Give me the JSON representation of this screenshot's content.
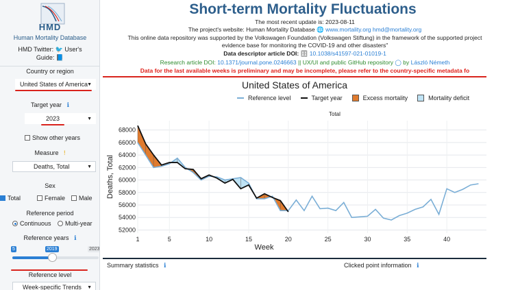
{
  "sidebar": {
    "logo_text": "HMD",
    "db_name": "Human Mortality Database",
    "twitter_line1": "HMD Twitter:",
    "twitter_user": "User's",
    "twitter_guide": "Guide:",
    "country_label": "Country or region",
    "country_value": "United States of America",
    "target_year_label": "Target year",
    "target_year_value": "2023",
    "show_other_years": "Show other years",
    "measure_label": "Measure",
    "measure_value": "Deaths, Total",
    "sex_label": "Sex",
    "sex_options": [
      "Total",
      "Female",
      "Male"
    ],
    "reference_period_label": "Reference period",
    "reference_period_options": [
      "Continuous",
      "Multi-year"
    ],
    "reference_years_label": "Reference years",
    "slider_min": "5",
    "slider_value": "2019",
    "slider_max": "2023",
    "reference_level_label": "Reference level",
    "reference_level_value": "Week-specific Trends"
  },
  "header": {
    "title": "Short-term Mortality Fluctuations",
    "update": "The most recent update is: 2023-08-11",
    "website_prefix": "The project's website: Human Mortality Database",
    "website_link": "www.mortality.org",
    "email_link": "hmd@mortality.org",
    "support_line1": "This online data repository was supported by the Volkswagen Foundation (Volkswagen Stiftung) in the framework of the supported project",
    "support_line2": "evidence base for monitoring the COVID-19 and other disasters\"",
    "descriptor_label": "Data descriptor article DOI:",
    "descriptor_doi": "10.1038/s41597-021-01019-1",
    "research_label": "Research article DOI:",
    "research_doi": "10.1371/journal.pone.0246663",
    "github_text": "|| UX/UI and public GitHub repository",
    "github_by": "by",
    "github_author": "László Németh",
    "warning": "Data for the last available weeks is preliminary and may be incomplete, please refer to the country-specific metadata fo"
  },
  "chart_data": {
    "type": "line",
    "title": "United States of America",
    "subtitle": "Total",
    "xlabel": "Week",
    "ylabel": "Deaths, Total",
    "xlim": [
      1,
      45
    ],
    "ylim": [
      51500,
      69500
    ],
    "x_ticks": [
      1,
      5,
      10,
      15,
      20,
      25,
      30,
      35,
      40
    ],
    "y_ticks": [
      52000,
      54000,
      56000,
      58000,
      60000,
      62000,
      64000,
      66000,
      68000
    ],
    "legend": [
      "Reference level",
      "Target year",
      "Excess mortality",
      "Mortality deficit"
    ],
    "colors": {
      "reference": "#7aaed6",
      "target": "#111111",
      "excess": "#e07b2e",
      "deficit": "#bfe3f5"
    },
    "reference_level": {
      "x": [
        1,
        2,
        3,
        4,
        5,
        6,
        7,
        8,
        9,
        10,
        11,
        12,
        13,
        14,
        15,
        16,
        17,
        18,
        19,
        20,
        21,
        22,
        23,
        24,
        25,
        26,
        27,
        28,
        29,
        30,
        31,
        32,
        33,
        34,
        35,
        36,
        37,
        38,
        39,
        40,
        41,
        42,
        43,
        44
      ],
      "y": [
        66000,
        64000,
        62000,
        62200,
        62600,
        63500,
        62000,
        61200,
        60000,
        60600,
        60500,
        60000,
        60200,
        60400,
        59500,
        57000,
        57000,
        57400,
        55100,
        55100,
        56800,
        55100,
        57400,
        55400,
        55500,
        55100,
        56400,
        54000,
        54100,
        54200,
        55300,
        53900,
        53600,
        54300,
        54700,
        55300,
        55700,
        56900,
        54500,
        58600,
        58000,
        58500,
        59200,
        59400
      ]
    },
    "target_year": {
      "x": [
        1,
        2,
        3,
        4,
        5,
        6,
        7,
        8,
        9,
        10,
        11,
        12,
        13,
        14,
        15,
        16,
        17,
        18,
        19,
        20
      ],
      "y": [
        68700,
        65800,
        64000,
        62400,
        62800,
        62800,
        61800,
        61700,
        60200,
        60800,
        60300,
        59500,
        60100,
        58600,
        59200,
        57100,
        57800,
        57200,
        56700,
        54900
      ]
    }
  },
  "bottom": {
    "summary": "Summary statistics",
    "clicked": "Clicked point information"
  }
}
